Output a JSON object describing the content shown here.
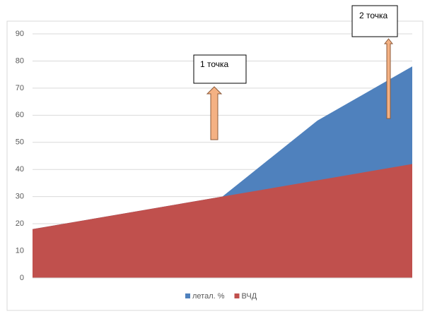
{
  "chart_data": {
    "type": "area",
    "categories": [
      null,
      null,
      null,
      null,
      null
    ],
    "series": [
      {
        "name": "летал. %",
        "color": "#4f81bd",
        "values": [
          18,
          24,
          30,
          58,
          78
        ]
      },
      {
        "name": "ВЧД",
        "color": "#c0504d",
        "values": [
          18,
          24,
          30,
          36,
          42
        ]
      }
    ],
    "ylim": [
      0,
      90
    ],
    "yticks": [
      0,
      10,
      20,
      30,
      40,
      50,
      60,
      70,
      80,
      90
    ],
    "grid": true,
    "legend": "bottom",
    "annotations": [
      "1 точка",
      "2 точка"
    ]
  }
}
